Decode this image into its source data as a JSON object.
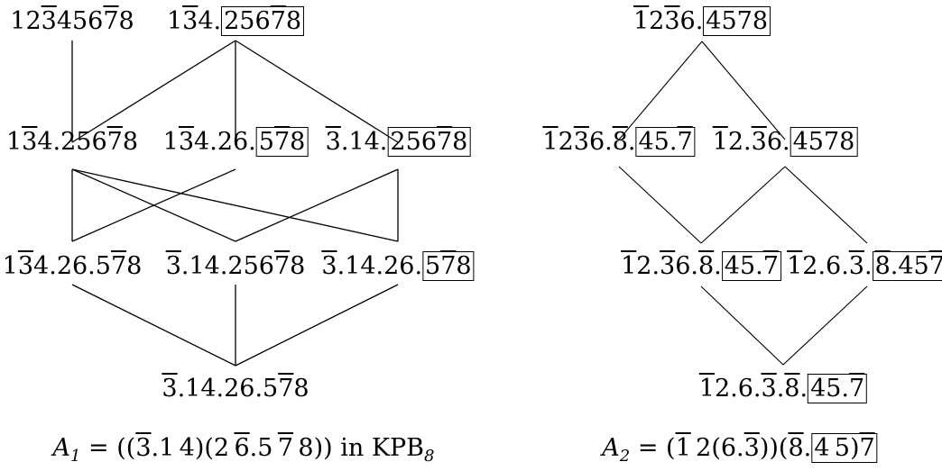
{
  "diagrams": [
    {
      "caption": "A1 = ((3.1 4)(2 6.5 7 8)) in KPB8",
      "nodes": [
        {
          "id": "n1",
          "label": "12345678"
        },
        {
          "id": "n2",
          "label": "134.25678"
        },
        {
          "id": "n3",
          "label": "134.25678"
        },
        {
          "id": "n4",
          "label": "134.26.578"
        },
        {
          "id": "n5",
          "label": "3.14.25678"
        },
        {
          "id": "n6",
          "label": "134.26.578"
        },
        {
          "id": "n7",
          "label": "3.14.25678"
        },
        {
          "id": "n8",
          "label": "3.14.26.578"
        },
        {
          "id": "n9",
          "label": "3.14.26.578"
        }
      ]
    },
    {
      "caption": "A2 = (1 2(6.3))(8.4 5)7",
      "nodes": [
        {
          "id": "m1",
          "label": "1236.4578"
        },
        {
          "id": "m2",
          "label": "1236.8.45.7"
        },
        {
          "id": "m3",
          "label": "12.36.4578"
        },
        {
          "id": "m4",
          "label": "12.36.8.45.7"
        },
        {
          "id": "m5",
          "label": "12.6.3.8.457"
        },
        {
          "id": "m6",
          "label": "12.6.3.8.45.7"
        }
      ]
    }
  ]
}
